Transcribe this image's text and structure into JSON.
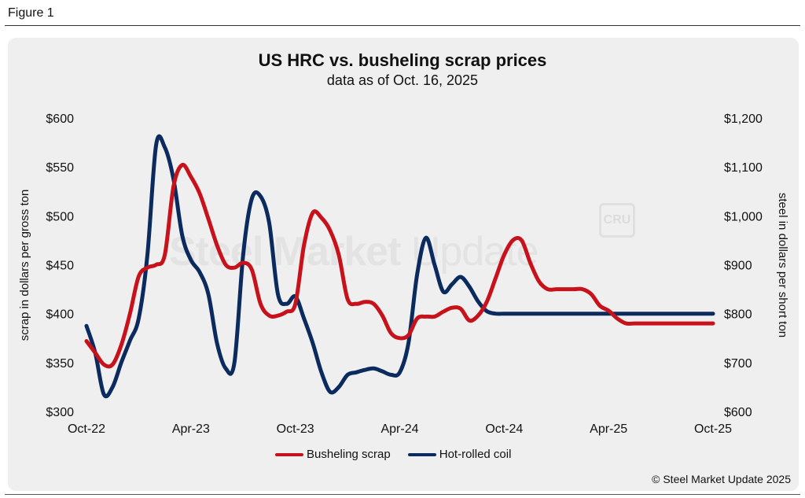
{
  "figure_label": "Figure 1",
  "watermark": {
    "text_bold": "Steel Market",
    "text_light": " Update",
    "badge": "CRU"
  },
  "copyright": "© Steel Market Update 2025",
  "legend": [
    {
      "label": "Busheling scrap",
      "color": "#c8121b"
    },
    {
      "label": "Hot-rolled coil",
      "color": "#0b2a5e"
    }
  ],
  "chart_data": {
    "type": "line",
    "title": "US HRC vs. busheling scrap prices",
    "subtitle": "data as of Oct. 16, 2025",
    "ylabel_left": "scrap in dollars per gross ton",
    "ylabel_right": "steel in dollars per short ton",
    "x_ticks": [
      "Oct-22",
      "Apr-23",
      "Oct-23",
      "Apr-24",
      "Oct-24",
      "Apr-25",
      "Oct-25"
    ],
    "y_left_ticks": [
      "$300",
      "$350",
      "$400",
      "$450",
      "$500",
      "$550",
      "$600"
    ],
    "y_right_ticks": [
      "$600",
      "$700",
      "$800",
      "$900",
      "$1,000",
      "$1,100",
      "$1,200"
    ],
    "ylim_left": [
      300,
      600
    ],
    "ylim_right": [
      600,
      1200
    ],
    "xlim_months": [
      0,
      36
    ],
    "grid": false,
    "legend_position": "bottom",
    "series": [
      {
        "name": "Busheling scrap",
        "axis": "left",
        "color": "#c8121b",
        "x": [
          0,
          0.5,
          1,
          1.5,
          2,
          2.5,
          3,
          3.5,
          4,
          4.5,
          5,
          5.5,
          6,
          6.5,
          7,
          7.5,
          8,
          8.5,
          9,
          9.5,
          10,
          10.5,
          11,
          11.5,
          12,
          12.5,
          13,
          13.5,
          14,
          14.5,
          15,
          15.5,
          16,
          16.5,
          17,
          17.5,
          18,
          18.5,
          19,
          19.5,
          20,
          20.5,
          21,
          21.5,
          22,
          22.5,
          23,
          23.5,
          24,
          24.5,
          25,
          25.5,
          26,
          26.5,
          27,
          27.5,
          28,
          28.5,
          29,
          29.5,
          30,
          30.5,
          31,
          31.5,
          32,
          32.5,
          33,
          33.5,
          34,
          34.5,
          35,
          35.5,
          36
        ],
        "values": [
          372,
          360,
          348,
          348,
          368,
          400,
          438,
          447,
          450,
          460,
          530,
          552,
          540,
          523,
          497,
          470,
          450,
          447,
          452,
          445,
          410,
          398,
          398,
          402,
          410,
          470,
          503,
          498,
          485,
          460,
          415,
          410,
          412,
          410,
          398,
          380,
          375,
          378,
          395,
          397,
          397,
          402,
          406,
          405,
          393,
          398,
          412,
          436,
          460,
          475,
          475,
          452,
          433,
          425,
          425,
          425,
          425,
          425,
          420,
          408,
          403,
          395,
          390,
          390,
          390,
          390,
          390,
          390,
          390,
          390,
          390,
          390,
          390
        ]
      },
      {
        "name": "Hot-rolled coil",
        "axis": "right",
        "color": "#0b2a5e",
        "x": [
          0,
          0.5,
          1,
          1.5,
          2,
          2.5,
          3,
          3.5,
          4,
          4.5,
          5,
          5.5,
          6,
          6.5,
          7,
          7.5,
          8,
          8.5,
          9,
          9.5,
          10,
          10.5,
          11,
          11.5,
          12,
          12.5,
          13,
          13.5,
          14,
          14.5,
          15,
          15.5,
          16,
          16.5,
          17,
          17.5,
          18,
          18.5,
          19,
          19.5,
          20,
          20.5,
          21,
          21.5,
          22,
          22.5,
          23,
          23.5,
          24,
          24.5,
          25,
          25.5,
          26,
          26.5,
          27,
          27.5,
          28,
          28.5,
          29,
          29.5,
          30,
          30.5,
          31,
          31.5,
          32,
          32.5,
          33,
          33.5,
          34,
          34.5,
          35,
          35.5,
          36
        ],
        "values": [
          775,
          720,
          635,
          650,
          700,
          745,
          790,
          920,
          1145,
          1140,
          1075,
          960,
          910,
          885,
          840,
          740,
          688,
          700,
          920,
          1035,
          1040,
          985,
          840,
          820,
          835,
          790,
          740,
          680,
          640,
          650,
          675,
          680,
          685,
          688,
          682,
          675,
          680,
          740,
          880,
          955,
          900,
          845,
          860,
          875,
          855,
          825,
          805,
          800,
          800,
          800,
          800,
          800,
          800,
          800,
          800,
          800,
          800,
          800,
          800,
          800,
          800,
          800,
          800,
          800,
          800,
          800,
          800,
          800,
          800,
          800,
          800,
          800,
          800
        ]
      }
    ]
  }
}
